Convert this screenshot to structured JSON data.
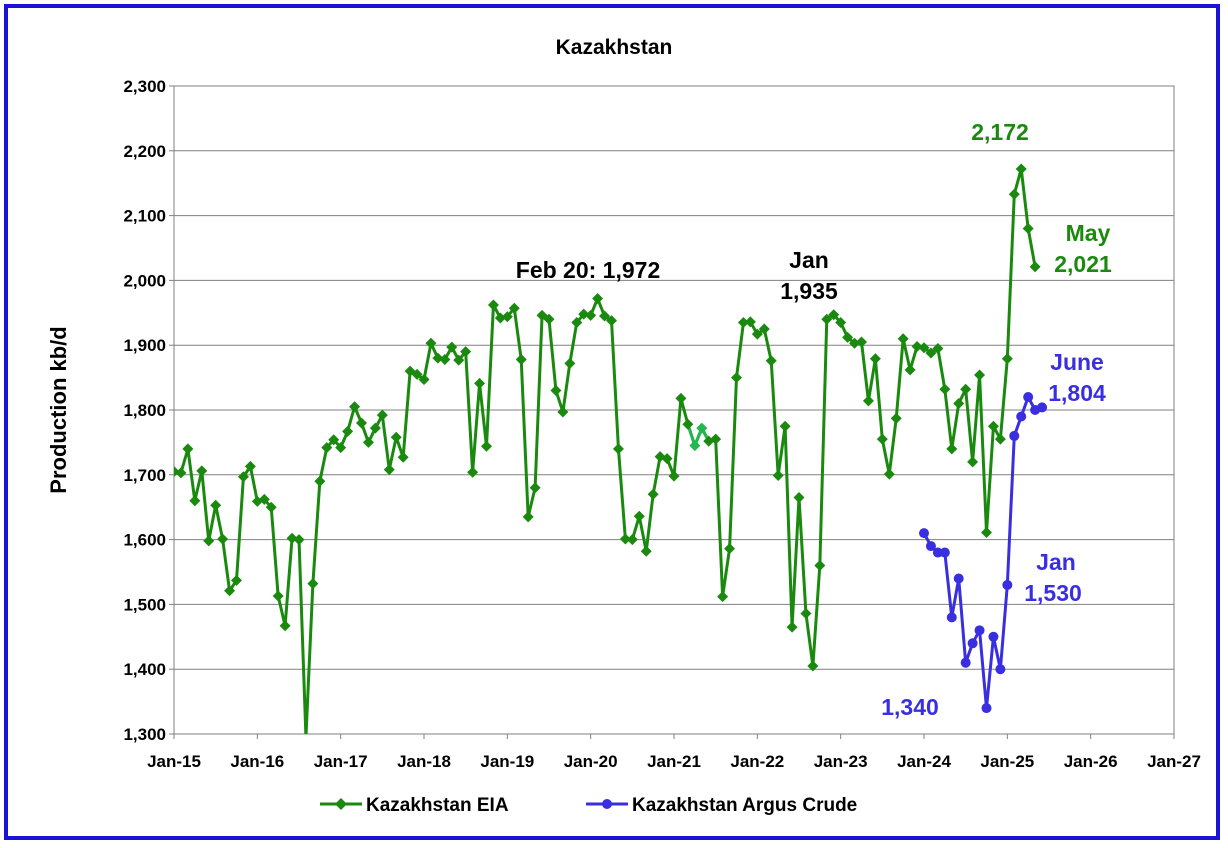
{
  "chart_data": {
    "type": "line",
    "title": "Kazakhstan",
    "ylabel": "Production kb/d",
    "xlabel": "",
    "ylim": [
      1300,
      2300
    ],
    "yticks": [
      "1,300",
      "1,400",
      "1,500",
      "1,600",
      "1,700",
      "1,800",
      "1,900",
      "2,000",
      "2,100",
      "2,200",
      "2,300"
    ],
    "xticks": [
      "Jan-15",
      "Jan-16",
      "Jan-17",
      "Jan-18",
      "Jan-19",
      "Jan-20",
      "Jan-21",
      "Jan-22",
      "Jan-23",
      "Jan-24",
      "Jan-25",
      "Jan-26",
      "Jan-27"
    ],
    "grid": "horizontal",
    "legend_position": "bottom",
    "colors": {
      "eia": "#1a8a0f",
      "argus": "#3a2fe0",
      "border": "#1a13d6",
      "eia_highlight": "#22b84f"
    },
    "series": [
      {
        "name": "Kazakhstan EIA",
        "marker": "diamond",
        "start": "Jan-15",
        "values": [
          1705,
          1703,
          1740,
          1660,
          1706,
          1598,
          1653,
          1601,
          1521,
          1537,
          1697,
          1713,
          1659,
          1662,
          1650,
          1513,
          1467,
          1602,
          1600,
          1295,
          1532,
          1690,
          1742,
          1754,
          1742,
          1767,
          1805,
          1780,
          1750,
          1772,
          1792,
          1708,
          1758,
          1727,
          1860,
          1855,
          1847,
          1903,
          1880,
          1878,
          1897,
          1877,
          1890,
          1704,
          1841,
          1744,
          1962,
          1942,
          1944,
          1957,
          1878,
          1635,
          1680,
          1946,
          1940,
          1830,
          1797,
          1872,
          1935,
          1948,
          1946,
          1972,
          1945,
          1938,
          1740,
          1601,
          1600,
          1636,
          1582,
          1670,
          1728,
          1725,
          1698,
          1818,
          1778,
          1745,
          1772,
          1752,
          1755,
          1512,
          1586,
          1850,
          1935,
          1936,
          1917,
          1925,
          1876,
          1699,
          1775,
          1465,
          1665,
          1486,
          1405,
          1560,
          1940,
          1947,
          1935,
          1912,
          1903,
          1905,
          1814,
          1879,
          1755,
          1701,
          1787,
          1910,
          1862,
          1898,
          1896,
          1888,
          1895,
          1832,
          1740,
          1810,
          1832,
          1720,
          1854,
          1611,
          1775,
          1755,
          1879,
          2133,
          2172,
          2080,
          2021
        ],
        "highlight_months": [
          "Apr-21",
          "May-21"
        ]
      },
      {
        "name": "Kazakhstan Argus Crude",
        "marker": "circle",
        "start": "Jan-24",
        "values": [
          1610,
          1590,
          1580,
          1580,
          1480,
          1540,
          1410,
          1440,
          1460,
          1340,
          1450,
          1400,
          1530,
          1760,
          1790,
          1820,
          1800,
          1804
        ]
      }
    ],
    "annotations": [
      {
        "text": "Feb 20: 1,972",
        "color": "black"
      },
      {
        "text": "Jan",
        "color": "black"
      },
      {
        "text": "1,935",
        "color": "black"
      },
      {
        "text": "2,172",
        "color": "green"
      },
      {
        "text": "May",
        "color": "green"
      },
      {
        "text": "2,021",
        "color": "green"
      },
      {
        "text": "June",
        "color": "blue"
      },
      {
        "text": "1,804",
        "color": "blue"
      },
      {
        "text": "Jan",
        "color": "blue"
      },
      {
        "text": "1,530",
        "color": "blue"
      },
      {
        "text": "1,340",
        "color": "blue"
      }
    ]
  }
}
